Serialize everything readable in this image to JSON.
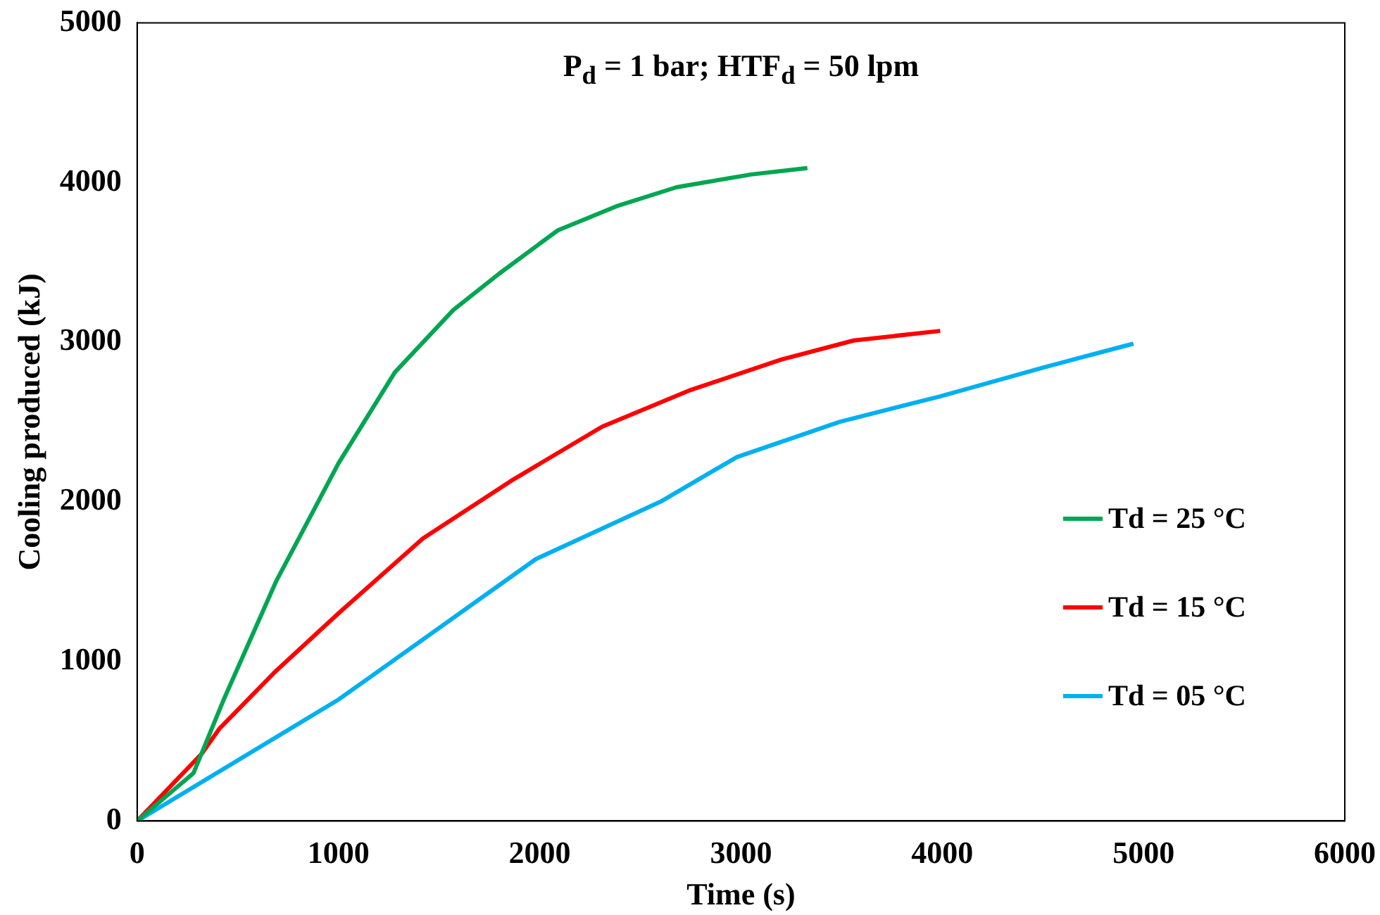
{
  "chart_data": {
    "type": "line",
    "title": "P$_{d}$ = 1 bar; HTF$_{d}$ = 50 lpm",
    "xlabel": "Time (s)",
    "ylabel": "Cooling produced (kJ)",
    "xlim": [
      0,
      6000
    ],
    "xticks": [
      0,
      1000,
      2000,
      3000,
      4000,
      5000,
      6000
    ],
    "ylim": [
      0,
      5000
    ],
    "yticks": [
      0,
      1000,
      2000,
      3000,
      4000,
      5000
    ],
    "grid": false,
    "legend": "right",
    "marker": "none",
    "line_style": "solid",
    "series": [
      {
        "name": "Td = 25 °C",
        "color": "#00a651",
        "x": [
          0,
          280,
          430,
          690,
          1000,
          1280,
          1570,
          1800,
          2090,
          2380,
          2680,
          3050,
          3330
        ],
        "values": [
          0,
          300,
          760,
          1500,
          2240,
          2810,
          3200,
          3430,
          3700,
          3850,
          3970,
          4050,
          4090
        ]
      },
      {
        "name": "Td = 15 °C",
        "color": "#ff0000",
        "x": [
          0,
          320,
          410,
          690,
          1000,
          1420,
          1870,
          2310,
          2750,
          3200,
          3560,
          3990
        ],
        "values": [
          0,
          420,
          580,
          940,
          1300,
          1770,
          2140,
          2470,
          2700,
          2890,
          3010,
          3070
        ]
      },
      {
        "name": "Td = 05 °C",
        "color": "#00b0f0",
        "x": [
          0,
          1000,
          1980,
          2600,
          2980,
          3490,
          3990,
          4500,
          4950
        ],
        "values": [
          0,
          760,
          1640,
          2000,
          2280,
          2500,
          2660,
          2840,
          2990
        ]
      }
    ]
  }
}
